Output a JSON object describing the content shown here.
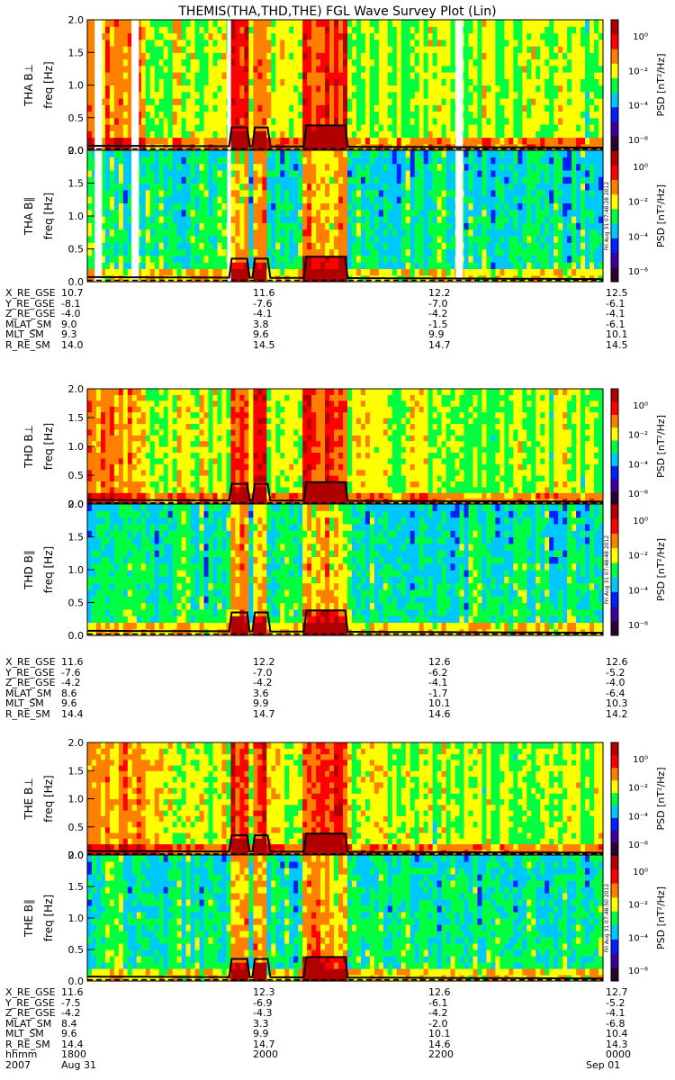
{
  "title": "THEMIS(THA,THD,THE) FGL Wave Survey Plot (Lin)",
  "chart_data": {
    "type": "heatmap",
    "title": "THEMIS(THA,THD,THE) FGL Wave Survey Plot (Lin)",
    "ylabel": "freq [Hz]",
    "ylim": [
      0,
      2.0
    ],
    "yticks": [
      "0.0",
      "0.5",
      "1.0",
      "1.5",
      "2.0"
    ],
    "colorbar_label": "PSD [nT²/Hz]",
    "colorbar_ticks": [
      "10⁰",
      "10⁻²",
      "10⁻⁴",
      "10⁻⁶"
    ],
    "colorbar_colors": [
      "#2a0030",
      "#3a00a0",
      "#0020ff",
      "#00c8ff",
      "#00ff40",
      "#ffff00",
      "#ff8000",
      "#ff0000",
      "#b00000"
    ],
    "panels": [
      {
        "label": "THA B⊥",
        "probe": "THA",
        "component": "perp",
        "stamp": ""
      },
      {
        "label": "THA B∥",
        "probe": "THA",
        "component": "par",
        "stamp": "Fri Aug 31 07:48:28 2012"
      },
      {
        "label": "THD B⊥",
        "probe": "THD",
        "component": "perp",
        "stamp": ""
      },
      {
        "label": "THD B∥",
        "probe": "THD",
        "component": "par",
        "stamp": "Fri Aug 31 07:48:48 2012"
      },
      {
        "label": "THE B⊥",
        "probe": "THE",
        "component": "perp",
        "stamp": ""
      },
      {
        "label": "THE B∥",
        "probe": "THE",
        "component": "par",
        "stamp": "Fri Aug 31 07:48:50 2012"
      }
    ],
    "ephemeris": [
      {
        "probe": "THA",
        "rows": [
          {
            "label": "X_RE_GSE",
            "values": [
              "10.7",
              "11.6",
              "12.2",
              "12.5"
            ]
          },
          {
            "label": "Y_RE_GSE",
            "values": [
              "-8.1",
              "-7.6",
              "-7.0",
              "-6.1"
            ]
          },
          {
            "label": "Z_RE_GSE",
            "values": [
              "-4.0",
              "-4.1",
              "-4.2",
              "-4.1"
            ]
          },
          {
            "label": "MLAT_SM",
            "values": [
              "9.0",
              "3.8",
              "-1.5",
              "-6.1"
            ]
          },
          {
            "label": "MLT_SM",
            "values": [
              "9.3",
              "9.6",
              "9.9",
              "10.1"
            ]
          },
          {
            "label": "R_RE_SM",
            "values": [
              "14.0",
              "14.5",
              "14.7",
              "14.5"
            ]
          }
        ]
      },
      {
        "probe": "THD",
        "rows": [
          {
            "label": "X_RE_GSE",
            "values": [
              "11.6",
              "12.2",
              "12.6",
              "12.6"
            ]
          },
          {
            "label": "Y_RE_GSE",
            "values": [
              "-7.6",
              "-7.0",
              "-6.2",
              "-5.2"
            ]
          },
          {
            "label": "Z_RE_GSE",
            "values": [
              "-4.2",
              "-4.2",
              "-4.1",
              "-4.0"
            ]
          },
          {
            "label": "MLAT_SM",
            "values": [
              "8.6",
              "3.6",
              "-1.7",
              "-6.4"
            ]
          },
          {
            "label": "MLT_SM",
            "values": [
              "9.6",
              "9.9",
              "10.1",
              "10.3"
            ]
          },
          {
            "label": "R_RE_SM",
            "values": [
              "14.4",
              "14.7",
              "14.6",
              "14.2"
            ]
          }
        ]
      },
      {
        "probe": "THE",
        "rows": [
          {
            "label": "X_RE_GSE",
            "values": [
              "11.6",
              "12.3",
              "12.6",
              "12.7"
            ]
          },
          {
            "label": "Y_RE_GSE",
            "values": [
              "-7.5",
              "-6.9",
              "-6.1",
              "-5.2"
            ]
          },
          {
            "label": "Z_RE_GSE",
            "values": [
              "-4.2",
              "-4.3",
              "-4.2",
              "-4.1"
            ]
          },
          {
            "label": "MLAT_SM",
            "values": [
              "8.4",
              "3.3",
              "-2.0",
              "-6.8"
            ]
          },
          {
            "label": "MLT_SM",
            "values": [
              "9.6",
              "9.9",
              "10.1",
              "10.4"
            ]
          },
          {
            "label": "R_RE_SM",
            "values": [
              "14.4",
              "14.7",
              "14.6",
              "14.3"
            ]
          },
          {
            "label": "hhmm",
            "values": [
              "1800",
              "2000",
              "2200",
              "0000"
            ]
          }
        ]
      }
    ],
    "date_row": {
      "year": "2007",
      "start": "Aug 31",
      "end": "Sep 01"
    },
    "x_time_hours": [
      17.5,
      24.5
    ],
    "tick_times": [
      "1800",
      "2000",
      "2200",
      "0000"
    ],
    "white_gaps_tha_hours": [
      [
        17.6,
        17.7
      ],
      [
        18.1,
        18.2
      ],
      [
        19.4,
        19.45
      ],
      [
        22.5,
        22.6
      ]
    ],
    "bursts": [
      {
        "start_hour": 19.45,
        "end_hour": 19.7,
        "peak_hz": 0.35
      },
      {
        "start_hour": 19.75,
        "end_hour": 19.95,
        "peak_hz": 0.35
      },
      {
        "start_hour": 20.45,
        "end_hour": 21.0,
        "peak_hz": 0.38
      }
    ]
  }
}
